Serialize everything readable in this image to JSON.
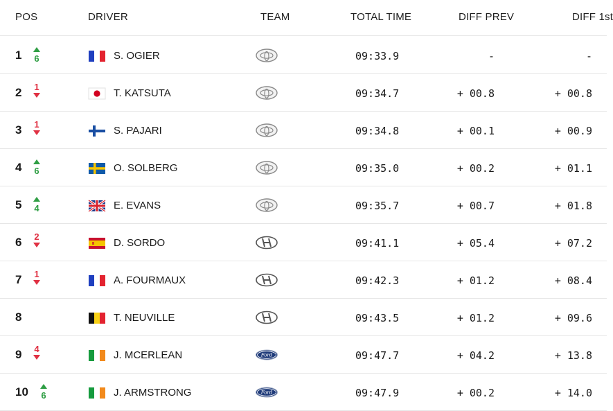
{
  "header": {
    "pos": "POS",
    "driver": "DRIVER",
    "team": "TEAM",
    "total_time": "TOTAL TIME",
    "diff_prev": "DIFF PREV",
    "diff_first": "DIFF 1st"
  },
  "colors": {
    "up": "#2f9e44",
    "down": "#e03143",
    "divider": "#e6e6e6"
  },
  "rows": [
    {
      "pos": "1",
      "change": "6",
      "dir": "up",
      "flag": "france-flag-icon",
      "driver": "S. OGIER",
      "team": "toyota-logo-icon",
      "total": "09:33.9",
      "diff_prev": "-",
      "diff_first": "-"
    },
    {
      "pos": "2",
      "change": "1",
      "dir": "down",
      "flag": "japan-flag-icon",
      "driver": "T. KATSUTA",
      "team": "toyota-logo-icon",
      "total": "09:34.7",
      "diff_prev": "+ 00.8",
      "diff_first": "+ 00.8"
    },
    {
      "pos": "3",
      "change": "1",
      "dir": "down",
      "flag": "finland-flag-icon",
      "driver": "S. PAJARI",
      "team": "toyota-logo-icon",
      "total": "09:34.8",
      "diff_prev": "+ 00.1",
      "diff_first": "+ 00.9"
    },
    {
      "pos": "4",
      "change": "6",
      "dir": "up",
      "flag": "sweden-flag-icon",
      "driver": "O. SOLBERG",
      "team": "toyota-logo-icon",
      "total": "09:35.0",
      "diff_prev": "+ 00.2",
      "diff_first": "+ 01.1"
    },
    {
      "pos": "5",
      "change": "4",
      "dir": "up",
      "flag": "uk-flag-icon",
      "driver": "E. EVANS",
      "team": "toyota-logo-icon",
      "total": "09:35.7",
      "diff_prev": "+ 00.7",
      "diff_first": "+ 01.8"
    },
    {
      "pos": "6",
      "change": "2",
      "dir": "down",
      "flag": "spain-flag-icon",
      "driver": "D. SORDO",
      "team": "hyundai-logo-icon",
      "total": "09:41.1",
      "diff_prev": "+ 05.4",
      "diff_first": "+ 07.2"
    },
    {
      "pos": "7",
      "change": "1",
      "dir": "down",
      "flag": "france-flag-icon",
      "driver": "A. FOURMAUX",
      "team": "hyundai-logo-icon",
      "total": "09:42.3",
      "diff_prev": "+ 01.2",
      "diff_first": "+ 08.4"
    },
    {
      "pos": "8",
      "change": "",
      "dir": "none",
      "flag": "belgium-flag-icon",
      "driver": "T. NEUVILLE",
      "team": "hyundai-logo-icon",
      "total": "09:43.5",
      "diff_prev": "+ 01.2",
      "diff_first": "+ 09.6"
    },
    {
      "pos": "9",
      "change": "4",
      "dir": "down",
      "flag": "ireland-flag-icon",
      "driver": "J. MCERLEAN",
      "team": "ford-logo-icon",
      "total": "09:47.7",
      "diff_prev": "+ 04.2",
      "diff_first": "+ 13.8"
    },
    {
      "pos": "10",
      "change": "6",
      "dir": "up",
      "flag": "ireland-flag-icon",
      "driver": "J. ARMSTRONG",
      "team": "ford-logo-icon",
      "total": "09:47.9",
      "diff_prev": "+ 00.2",
      "diff_first": "+ 14.0"
    }
  ]
}
